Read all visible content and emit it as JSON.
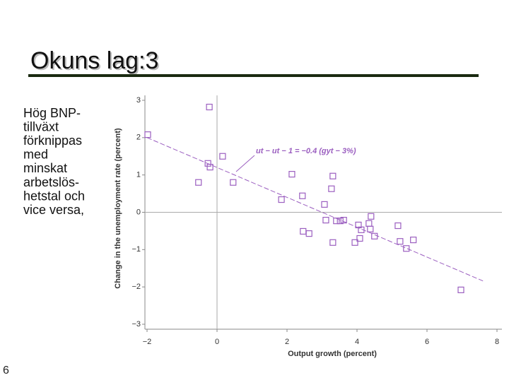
{
  "slide": {
    "title": "Okuns lag:3",
    "body": [
      "Hög BNP-",
      "tillväxt",
      "förknippas",
      "med",
      "minskat",
      "arbetslös-",
      "hetstal och",
      "vice versa,"
    ],
    "page_number": "6"
  },
  "chart_data": {
    "type": "scatter",
    "x_label": "Output growth (percent)",
    "y_label": "Change in the unemployment rate (percent)",
    "annotation": "ut − ut − 1 = −0.4 (gyt − 3%)",
    "color": "#9b5fc0",
    "xlim": [
      -2,
      8
    ],
    "xticks": [
      {
        "value": -2,
        "label": "−2"
      },
      0,
      2,
      4,
      6,
      8
    ],
    "ylim": [
      -3,
      3
    ],
    "yticks": [
      {
        "value": -3,
        "label": "−3"
      },
      {
        "value": -2,
        "label": "−2"
      },
      {
        "value": -1,
        "label": "−1"
      },
      0,
      1,
      2,
      3
    ],
    "x": [
      -1.98,
      -0.22,
      -0.26,
      -0.2,
      0.16,
      -0.53,
      0.46,
      2.14,
      3.31,
      3.27,
      2.44,
      1.84,
      3.07,
      4.4,
      3.11,
      3.41,
      3.52,
      3.62,
      4.04,
      4.34,
      5.17,
      2.46,
      2.63,
      4.12,
      4.38,
      4.5,
      4.08,
      3.31,
      3.94,
      5.23,
      5.61,
      5.41,
      6.97
    ],
    "values": [
      2.08,
      2.82,
      1.31,
      1.21,
      1.5,
      0.8,
      0.8,
      1.02,
      0.97,
      0.63,
      0.44,
      0.34,
      0.21,
      -0.11,
      -0.21,
      -0.23,
      -0.23,
      -0.21,
      -0.34,
      -0.3,
      -0.36,
      -0.51,
      -0.57,
      -0.47,
      -0.45,
      -0.64,
      -0.7,
      -0.81,
      -0.81,
      -0.78,
      -0.74,
      -0.97,
      -2.08
    ],
    "fit_line": {
      "x": [
        -2,
        7.6
      ],
      "values": [
        2,
        -1.84
      ]
    }
  }
}
